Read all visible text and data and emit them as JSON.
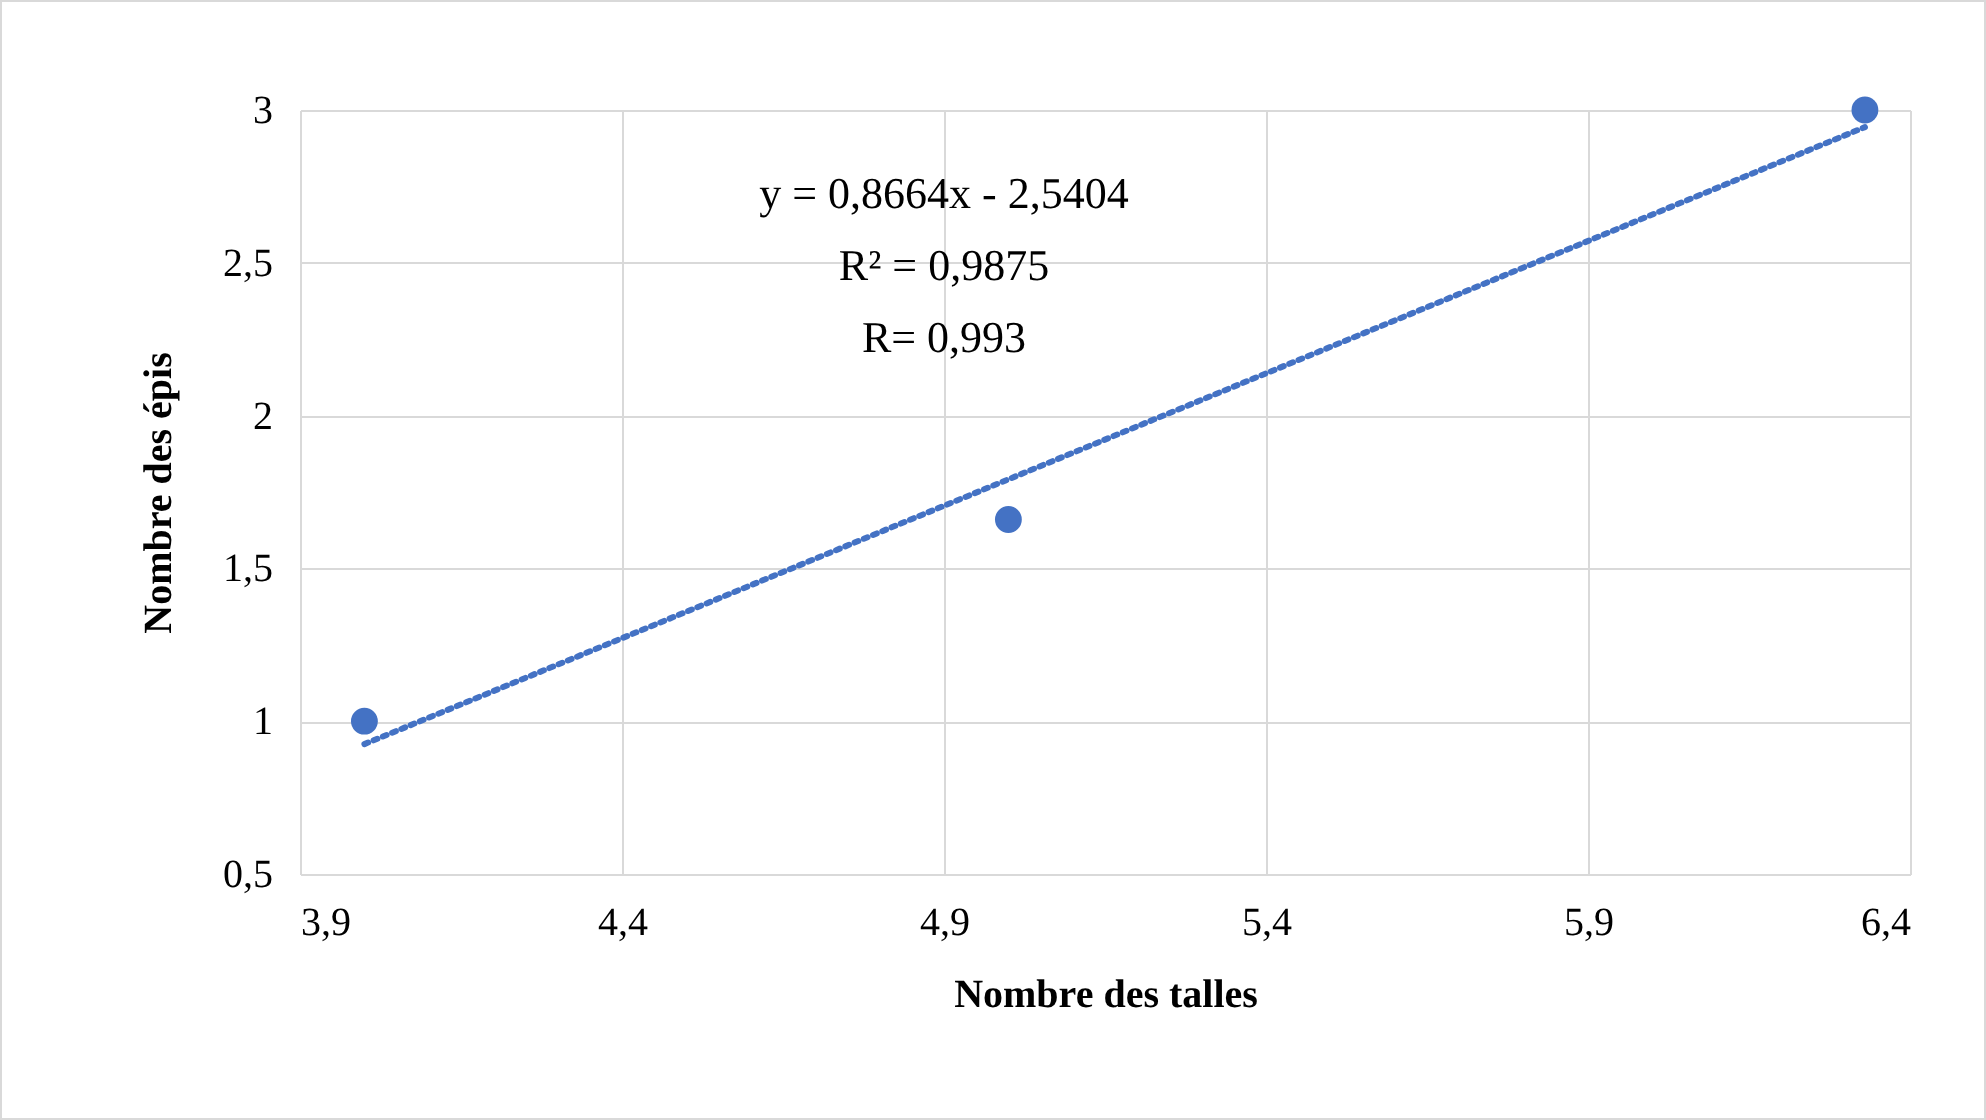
{
  "chart_data": {
    "type": "scatter",
    "xlabel": "Nombre des talles",
    "ylabel": "Nombre des épis",
    "annotations": [
      "y = 0,8664x - 2,5404",
      "R² = 0,9875",
      "R= 0,993"
    ],
    "series": [
      {
        "color": "#4472c4",
        "x": [
          4.0,
          5.0,
          6.33
        ],
        "values": [
          1.0,
          1.66,
          3.0
        ]
      },
      {
        "type": "line",
        "color": "#4472c4",
        "line_style": "dotted",
        "marker": "none",
        "x": [
          4.0,
          6.33
        ],
        "values": [
          0.925,
          2.944
        ]
      }
    ],
    "marker": "circle",
    "xlim": [
      3.9,
      6.4
    ],
    "xticks": [
      {
        "value": 3.9,
        "label": "3,9"
      },
      {
        "value": 4.4,
        "label": "4,4"
      },
      {
        "value": 4.9,
        "label": "4,9"
      },
      {
        "value": 5.4,
        "label": "5,4"
      },
      {
        "value": 5.9,
        "label": "5,9"
      },
      {
        "value": 6.4,
        "label": "6,4"
      }
    ],
    "ylim": [
      0.5,
      3
    ],
    "yticks": [
      {
        "value": 0.5,
        "label": "0,5"
      },
      1,
      {
        "value": 1.5,
        "label": "1,5"
      },
      2,
      {
        "value": 2.5,
        "label": "2,5"
      },
      3
    ],
    "grid": true
  }
}
